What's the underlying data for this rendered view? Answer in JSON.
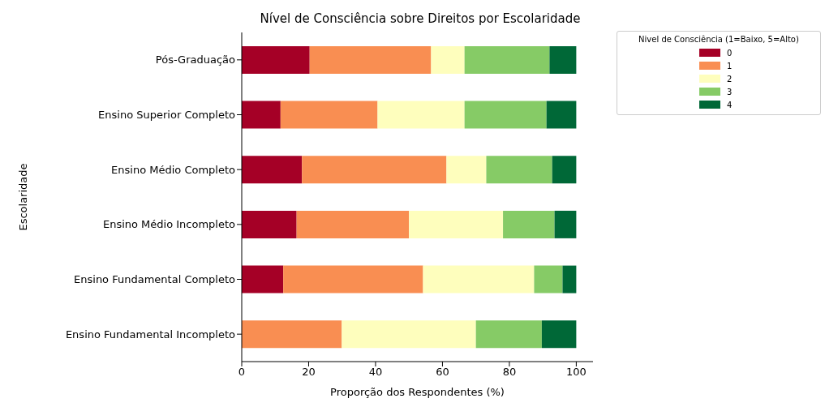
{
  "chart_data": {
    "type": "bar",
    "orientation": "horizontal",
    "stacked": true,
    "title": "Nível de Consciência sobre Direitos por Escolaridade",
    "xlabel": "Proporção dos Respondentes (%)",
    "ylabel": "Escolaridade",
    "legend_title": "Nivel de Consciência (1=Baixo, 5=Alto)",
    "legend": "top right",
    "grid": false,
    "categories": [
      "Pós-Graduação",
      "Ensino Superior Completo",
      "Ensino Médio Completo",
      "Ensino Médio Incompleto",
      "Ensino Fundamental Completo",
      "Ensino Fundamental Incompleto"
    ],
    "xlim": [
      0,
      105
    ],
    "xticks": [
      0,
      20,
      40,
      60,
      80,
      100
    ],
    "series": [
      {
        "name": "0",
        "color": "#a50026",
        "values": [
          20.3,
          11.6,
          18.0,
          16.4,
          12.4,
          0
        ]
      },
      {
        "name": "1",
        "color": "#f98e52",
        "values": [
          36.3,
          29.0,
          43.2,
          33.6,
          41.8,
          29.9
        ]
      },
      {
        "name": "2",
        "color": "#fefebd",
        "values": [
          10.0,
          26.0,
          11.9,
          28.1,
          33.2,
          40.1
        ]
      },
      {
        "name": "3",
        "color": "#86cb66",
        "values": [
          25.4,
          24.5,
          19.7,
          15.4,
          8.5,
          19.7
        ]
      },
      {
        "name": "4",
        "color": "#006837",
        "values": [
          8.0,
          8.9,
          7.2,
          6.5,
          4.1,
          10.3
        ]
      }
    ]
  }
}
